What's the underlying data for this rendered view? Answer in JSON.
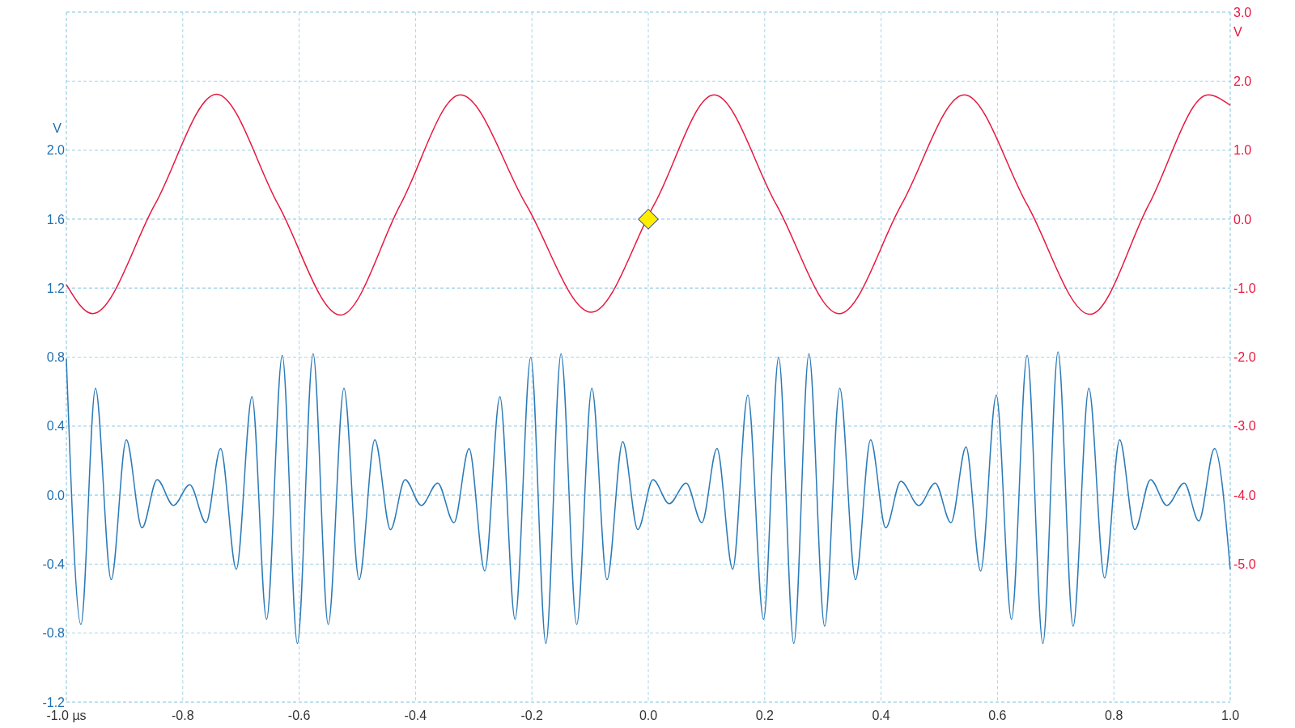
{
  "chart_data": {
    "type": "line",
    "ylabel": "V",
    "y2label": "V",
    "xlim": [
      -1,
      1
    ],
    "xticks": [
      {
        "value": -1,
        "label": "-1.0 µs"
      },
      -0.8,
      -0.6,
      -0.4,
      -0.2,
      {
        "value": 0,
        "label": "0.0"
      },
      0.2,
      0.4,
      0.6,
      0.8,
      {
        "value": 1,
        "label": "1.0"
      }
    ],
    "ylim": [
      -1.2,
      2.8
    ],
    "yticks": [
      -1.2,
      -0.8,
      -0.4,
      {
        "value": 0,
        "label": "0.0"
      },
      0.4,
      0.8,
      1.2,
      1.6,
      {
        "value": 2,
        "label": "2.0"
      }
    ],
    "y2lim": [
      -7,
      3
    ],
    "y2ticks": [
      {
        "value": -5,
        "label": "-5.0"
      },
      {
        "value": -4,
        "label": "-4.0"
      },
      {
        "value": -3,
        "label": "-3.0"
      },
      {
        "value": -2,
        "label": "-2.0"
      },
      {
        "value": -1,
        "label": "-1.0"
      },
      {
        "value": 0,
        "label": "0.0"
      },
      {
        "value": 1,
        "label": "1.0"
      },
      {
        "value": 2,
        "label": "2.0"
      },
      {
        "value": 3,
        "label": "3.0"
      }
    ],
    "grid": true,
    "line_style": "solid",
    "series": [
      {
        "axis": "y2",
        "color": "#e8173f",
        "x": [
          -1,
          -0.955,
          -0.848,
          -0.742,
          -0.636,
          -0.529,
          -0.426,
          -0.323,
          -0.21,
          -0.098,
          0.01,
          0.113,
          0.22,
          0.328,
          0.435,
          0.543,
          0.651,
          0.759,
          0.86,
          0.962,
          1
        ],
        "values": [
          -0.95,
          -1.37,
          0.21,
          1.81,
          0.21,
          -1.39,
          0.21,
          1.8,
          0.21,
          -1.35,
          0.21,
          1.8,
          0.21,
          -1.37,
          0.21,
          1.8,
          0.21,
          -1.38,
          0.21,
          1.8,
          1.65
        ]
      },
      {
        "color": "#2a7ab8",
        "x": [
          -1,
          -0.975,
          -0.95,
          -0.923,
          -0.897,
          -0.87,
          -0.844,
          -0.816,
          -0.788,
          -0.76,
          -0.735,
          -0.708,
          -0.681,
          -0.656,
          -0.629,
          -0.603,
          -0.576,
          -0.55,
          -0.523,
          -0.497,
          -0.47,
          -0.443,
          -0.418,
          -0.39,
          -0.362,
          -0.334,
          -0.308,
          -0.281,
          -0.255,
          -0.229,
          -0.202,
          -0.176,
          -0.15,
          -0.123,
          -0.097,
          -0.071,
          -0.044,
          -0.018,
          0.008,
          0.036,
          0.065,
          0.092,
          0.118,
          0.145,
          0.171,
          0.198,
          0.224,
          0.25,
          0.276,
          0.303,
          0.329,
          0.356,
          0.382,
          0.408,
          0.434,
          0.465,
          0.493,
          0.52,
          0.546,
          0.571,
          0.598,
          0.624,
          0.651,
          0.678,
          0.704,
          0.73,
          0.757,
          0.784,
          0.81,
          0.836,
          0.863,
          0.891,
          0.921,
          0.946,
          0.973,
          1
        ],
        "values": [
          0.79,
          -0.75,
          0.62,
          -0.49,
          0.32,
          -0.19,
          0.09,
          -0.06,
          0.06,
          -0.16,
          0.27,
          -0.43,
          0.57,
          -0.72,
          0.81,
          -0.86,
          0.82,
          -0.75,
          0.62,
          -0.49,
          0.32,
          -0.2,
          0.09,
          -0.06,
          0.07,
          -0.16,
          0.27,
          -0.44,
          0.57,
          -0.72,
          0.8,
          -0.86,
          0.82,
          -0.75,
          0.62,
          -0.49,
          0.31,
          -0.2,
          0.09,
          -0.05,
          0.07,
          -0.16,
          0.27,
          -0.43,
          0.58,
          -0.72,
          0.8,
          -0.86,
          0.82,
          -0.76,
          0.62,
          -0.49,
          0.32,
          -0.19,
          0.08,
          -0.06,
          0.07,
          -0.16,
          0.28,
          -0.44,
          0.58,
          -0.72,
          0.81,
          -0.86,
          0.83,
          -0.76,
          0.62,
          -0.48,
          0.32,
          -0.2,
          0.09,
          -0.06,
          0.07,
          -0.15,
          0.27,
          -0.43
        ]
      },
      {
        "type": "scatter",
        "axis": "y2",
        "color": "#ffee00",
        "marker": "diamond",
        "x": [
          0
        ],
        "values": [
          0
        ]
      }
    ]
  }
}
